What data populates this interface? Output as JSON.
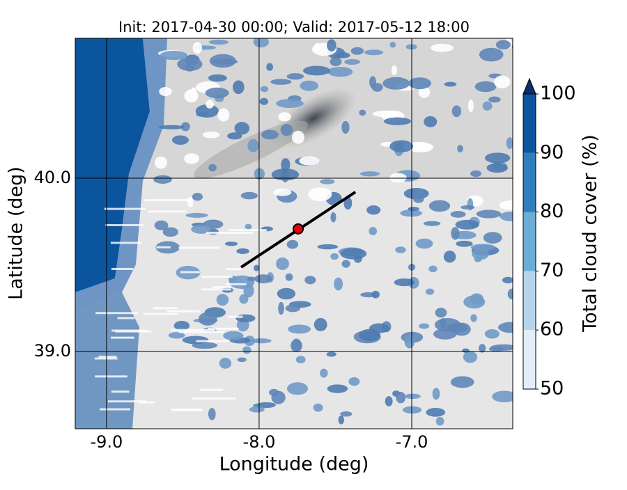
{
  "chart_data": {
    "type": "map",
    "title": "Init: 2017-04-30 00:00; Valid: 2017-05-12 18:00",
    "x_label": "Longitude (deg)",
    "y_label": "Latitude (deg)",
    "xlim": [
      -9.205,
      -6.338
    ],
    "ylim": [
      38.554,
      40.807
    ],
    "xticks": [
      {
        "value": -9,
        "label": "-9.0"
      },
      {
        "value": -8,
        "label": "-8.0"
      },
      {
        "value": -7,
        "label": "-7.0"
      }
    ],
    "yticks": [
      {
        "value": 39,
        "label": "39.0"
      },
      {
        "value": 40,
        "label": "40.0"
      }
    ],
    "colorbar": {
      "label": "Total cloud cover (%)",
      "levels": [
        50,
        60,
        70,
        80,
        90,
        100
      ],
      "colors": [
        "#e3eef8",
        "#b7d4ea",
        "#6aaed6",
        "#2f7ebc",
        "#0b559f"
      ],
      "extend_color": "#08306b",
      "ticks": [
        50,
        60,
        70,
        80,
        90,
        100
      ]
    },
    "transect": {
      "start": [
        -8.118,
        39.486
      ],
      "end": [
        -7.369,
        39.92
      ],
      "color": "#000000"
    },
    "point": {
      "lon": -7.744,
      "lat": 39.707,
      "color": "#e8000b"
    }
  }
}
